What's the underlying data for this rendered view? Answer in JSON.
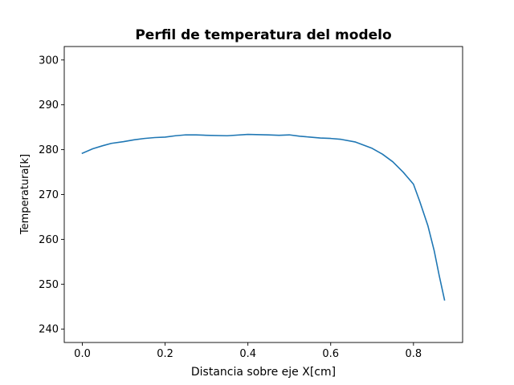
{
  "chart_data": {
    "type": "line",
    "title": "Perfil de temperatura del modelo",
    "xlabel": "Distancia sobre eje X[cm]",
    "ylabel": "Temperatura[k]",
    "xlim": [
      -0.0437,
      0.9187
    ],
    "ylim": [
      237,
      303
    ],
    "xticks": [
      0.0,
      0.2,
      0.4,
      0.6,
      0.8
    ],
    "xtick_labels": [
      "0.0",
      "0.2",
      "0.4",
      "0.6",
      "0.8"
    ],
    "yticks": [
      240,
      250,
      260,
      270,
      280,
      290,
      300
    ],
    "ytick_labels": [
      "240",
      "250",
      "260",
      "270",
      "280",
      "290",
      "300"
    ],
    "grid": false,
    "series": [
      {
        "color": "#1f77b4",
        "x": [
          0.0,
          0.025,
          0.05,
          0.07,
          0.1,
          0.125,
          0.15,
          0.175,
          0.2,
          0.225,
          0.25,
          0.275,
          0.3,
          0.35,
          0.4,
          0.45,
          0.475,
          0.5,
          0.525,
          0.55,
          0.575,
          0.6,
          0.625,
          0.66,
          0.7,
          0.725,
          0.75,
          0.775,
          0.8,
          0.815,
          0.835,
          0.85,
          0.862,
          0.875
        ],
        "y": [
          279.2,
          280.2,
          280.9,
          281.4,
          281.8,
          282.2,
          282.5,
          282.7,
          282.8,
          283.1,
          283.3,
          283.3,
          283.2,
          283.1,
          283.4,
          283.3,
          283.2,
          283.3,
          283.0,
          282.8,
          282.6,
          282.5,
          282.3,
          281.7,
          280.3,
          279.0,
          277.3,
          275.0,
          272.3,
          268.5,
          263.0,
          257.5,
          252.0,
          246.5
        ]
      }
    ]
  }
}
